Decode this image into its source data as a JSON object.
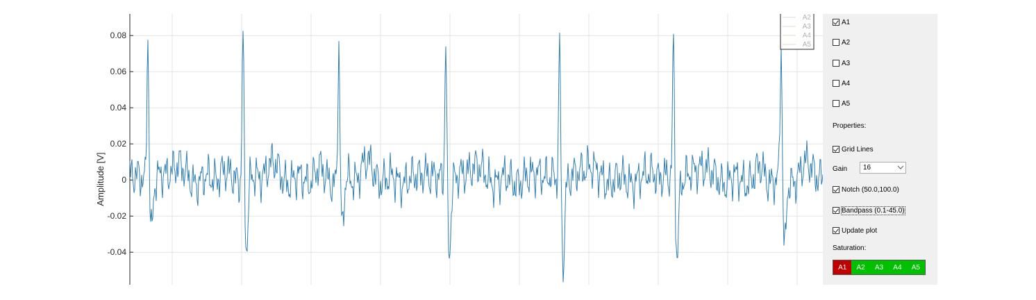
{
  "plot": {
    "ylabel": "Amplitude [V]",
    "yticks": [
      "0.08",
      "0.06",
      "0.04",
      "0.02",
      "0",
      "-0.02",
      "-0.04"
    ],
    "ylim": [
      -0.058,
      0.092
    ],
    "grid": true,
    "line_color": "#2f7fb4",
    "legend": {
      "entries": [
        "A2",
        "A3",
        "A4",
        "A5"
      ],
      "placement": "top-right"
    }
  },
  "chart_data": {
    "type": "line",
    "ylabel": "Amplitude [V]",
    "ylim": [
      -0.058,
      0.092
    ],
    "yticks": [
      0.08,
      0.06,
      0.04,
      0.02,
      0,
      -0.02,
      -0.04
    ],
    "grid": true,
    "series": [
      {
        "name": "A1",
        "r_peaks": [
          0.084,
          0.083,
          0.078,
          0.08,
          0.078,
          0.08,
          0.076
        ],
        "s_troughs": [
          -0.028,
          -0.037,
          -0.03,
          -0.039,
          -0.043,
          -0.04,
          -0.041
        ]
      }
    ],
    "legend_entries": [
      "A2",
      "A3",
      "A4",
      "A5"
    ]
  },
  "panel": {
    "channels": [
      {
        "label": "A1",
        "checked": true
      },
      {
        "label": "A2",
        "checked": false
      },
      {
        "label": "A3",
        "checked": false
      },
      {
        "label": "A4",
        "checked": false
      },
      {
        "label": "A5",
        "checked": false
      }
    ],
    "properties_label": "Properties:",
    "grid_lines": {
      "label": "Grid Lines",
      "checked": true
    },
    "gain": {
      "label": "Gain",
      "value": "16"
    },
    "notch": {
      "label": "Notch (50.0,100.0)",
      "checked": true
    },
    "bandpass": {
      "label": "Bandpass (0.1-45.0)",
      "checked": true
    },
    "update_plot": {
      "label": "Update plot",
      "checked": true
    },
    "saturation_label": "Saturation:",
    "saturation": [
      {
        "label": "A1",
        "color": "#c00000"
      },
      {
        "label": "A2",
        "color": "#00c000"
      },
      {
        "label": "A3",
        "color": "#00c000"
      },
      {
        "label": "A4",
        "color": "#00c000"
      },
      {
        "label": "A5",
        "color": "#00c000"
      }
    ]
  }
}
